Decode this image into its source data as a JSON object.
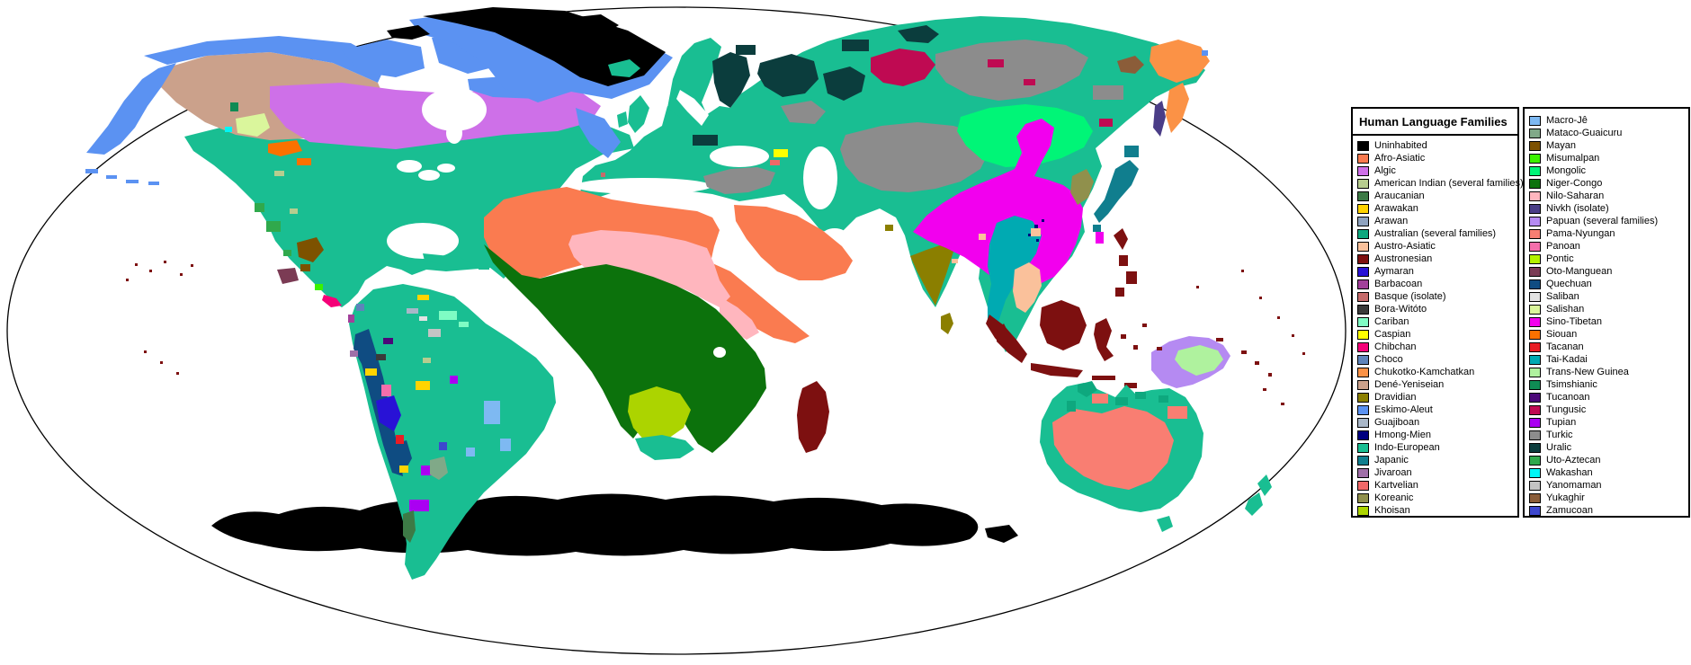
{
  "window": {
    "background": "#FFFFFF",
    "map_outline": "#000000"
  },
  "legend": {
    "title": "Human Language Families",
    "column1": [
      {
        "label": "Uninhabited",
        "color_key": "uninhabited"
      },
      {
        "label": "Afro-Asiatic",
        "color_key": "afroAsiatic"
      },
      {
        "label": "Algic",
        "color_key": "algic"
      },
      {
        "label": "American Indian (several families)",
        "color_key": "americanIndian"
      },
      {
        "label": "Araucanian",
        "color_key": "araucanian"
      },
      {
        "label": "Arawakan",
        "color_key": "arawakan"
      },
      {
        "label": "Arawan",
        "color_key": "arawan"
      },
      {
        "label": "Australian (several families)",
        "color_key": "australian"
      },
      {
        "label": "Austro-Asiatic",
        "color_key": "austroAsiatic"
      },
      {
        "label": "Austronesian",
        "color_key": "austronesian"
      },
      {
        "label": "Aymaran",
        "color_key": "aymaran"
      },
      {
        "label": "Barbacoan",
        "color_key": "barbacoan"
      },
      {
        "label": "Basque (isolate)",
        "color_key": "basque"
      },
      {
        "label": "Bora-Witóto",
        "color_key": "boraWitoto"
      },
      {
        "label": "Cariban",
        "color_key": "cariban"
      },
      {
        "label": "Caspian",
        "color_key": "caspian"
      },
      {
        "label": "Chibchan",
        "color_key": "chibchan"
      },
      {
        "label": "Choco",
        "color_key": "choco"
      },
      {
        "label": "Chukotko-Kamchatkan",
        "color_key": "chukotko"
      },
      {
        "label": "Dené-Yeniseian",
        "color_key": "deneYeniseian"
      },
      {
        "label": "Dravidian",
        "color_key": "dravidian"
      },
      {
        "label": "Eskimo-Aleut",
        "color_key": "eskimoAleut"
      },
      {
        "label": "Guajiboan",
        "color_key": "guajiboan"
      },
      {
        "label": "Hmong-Mien",
        "color_key": "hmongMien"
      },
      {
        "label": "Indo-European",
        "color_key": "indoEuropean"
      },
      {
        "label": "Japanic",
        "color_key": "japanic"
      },
      {
        "label": "Jivaroan",
        "color_key": "jivaroan"
      },
      {
        "label": "Kartvelian",
        "color_key": "kartvelian"
      },
      {
        "label": "Koreanic",
        "color_key": "koreanic"
      },
      {
        "label": "Khoisan",
        "color_key": "khoisan"
      }
    ],
    "column2": [
      {
        "label": "Macro-Jê",
        "color_key": "macroJe"
      },
      {
        "label": "Mataco-Guaicuru",
        "color_key": "matacoGuaicuru"
      },
      {
        "label": "Mayan",
        "color_key": "mayan"
      },
      {
        "label": "Misumalpan",
        "color_key": "misumalpan"
      },
      {
        "label": "Mongolic",
        "color_key": "mongolic"
      },
      {
        "label": "Niger-Congo",
        "color_key": "nigerCongo"
      },
      {
        "label": "Nilo-Saharan",
        "color_key": "niloSaharan"
      },
      {
        "label": "Nivkh (isolate)",
        "color_key": "nivkh"
      },
      {
        "label": "Papuan (several families)",
        "color_key": "papuan"
      },
      {
        "label": "Pama-Nyungan",
        "color_key": "pamaNyungan"
      },
      {
        "label": "Panoan",
        "color_key": "panoan"
      },
      {
        "label": "Pontic",
        "color_key": "pontic"
      },
      {
        "label": "Oto-Manguean",
        "color_key": "otoManguean"
      },
      {
        "label": "Quechuan",
        "color_key": "quechuan"
      },
      {
        "label": "Saliban",
        "color_key": "saliban"
      },
      {
        "label": "Salishan",
        "color_key": "salishan"
      },
      {
        "label": "Sino-Tibetan",
        "color_key": "sinoTibetan"
      },
      {
        "label": "Siouan",
        "color_key": "siouan"
      },
      {
        "label": "Tacanan",
        "color_key": "tacanan"
      },
      {
        "label": "Tai-Kadai",
        "color_key": "taiKadai"
      },
      {
        "label": "Trans-New Guinea",
        "color_key": "transNewGuinea"
      },
      {
        "label": "Tsimshianic",
        "color_key": "tsimshianic"
      },
      {
        "label": "Tucanoan",
        "color_key": "tucanoan"
      },
      {
        "label": "Tungusic",
        "color_key": "tungusic"
      },
      {
        "label": "Tupian",
        "color_key": "tupian"
      },
      {
        "label": "Turkic",
        "color_key": "turkic"
      },
      {
        "label": "Uralic",
        "color_key": "uralic"
      },
      {
        "label": "Uto-Aztecan",
        "color_key": "utoAztecan"
      },
      {
        "label": "Wakashan",
        "color_key": "wakashan"
      },
      {
        "label": "Yanomaman",
        "color_key": "yanomaman"
      },
      {
        "label": "Yukaghir",
        "color_key": "yukaghir"
      },
      {
        "label": "Zamucoan",
        "color_key": "zamucoan"
      }
    ]
  },
  "colors": {
    "uninhabited": "#000000",
    "afroAsiatic": "#FA7B50",
    "algic": "#CE70E8",
    "americanIndian": "#B7CD8F",
    "araucanian": "#3D7A46",
    "arawakan": "#FFD400",
    "arawan": "#8FA3BF",
    "australian": "#0EA87E",
    "austroAsiatic": "#FAC19B",
    "austronesian": "#7D1010",
    "aymaran": "#2812D6",
    "barbacoan": "#A2409A",
    "basque": "#C66B6B",
    "boraWitoto": "#3A3A3A",
    "cariban": "#7FFCC4",
    "caspian": "#FFFF00",
    "chibchan": "#F50078",
    "choco": "#5E84BA",
    "chukotko": "#FB9246",
    "deneYeniseian": "#CBA18B",
    "dravidian": "#8B7F00",
    "eskimoAleut": "#5B92F2",
    "guajiboan": "#A9B7C8",
    "hmongMien": "#000080",
    "indoEuropean": "#19BE92",
    "japanic": "#107E8E",
    "jivaroan": "#A06FA8",
    "kartvelian": "#F16868",
    "koreanic": "#90904C",
    "khoisan": "#ACD400",
    "macroJe": "#7EB9F2",
    "matacoGuaicuru": "#80A988",
    "mayan": "#7D5200",
    "misumalpan": "#3BF200",
    "mongolic": "#00F577",
    "nigerCongo": "#0C720C",
    "niloSaharan": "#FFB6BE",
    "nivkh": "#4A3D87",
    "papuan": "#B58AF2",
    "pamaNyungan": "#F97E72",
    "panoan": "#F56EAB",
    "pontic": "#B4F200",
    "otoManguean": "#7B3B54",
    "quechuan": "#0F4C82",
    "saliban": "#E3E3E3",
    "salishan": "#DAF69C",
    "sinoTibetan": "#F200EE",
    "siouan": "#FB7100",
    "tacanan": "#E91D24",
    "taiKadai": "#00AAB2",
    "transNewGuinea": "#AFF29E",
    "tsimshianic": "#0F8B54",
    "tucanoan": "#4B0879",
    "tungusic": "#BF0A52",
    "tupian": "#AA00F2",
    "turkic": "#8C8C8C",
    "uralic": "#0B3D3D",
    "utoAztecan": "#30A94C",
    "wakashan": "#00F7F7",
    "yanomaman": "#C4C4C4",
    "yukaghir": "#8B5D39",
    "zamucoan": "#3D47CE",
    "ocean": "#FFFFFF"
  }
}
